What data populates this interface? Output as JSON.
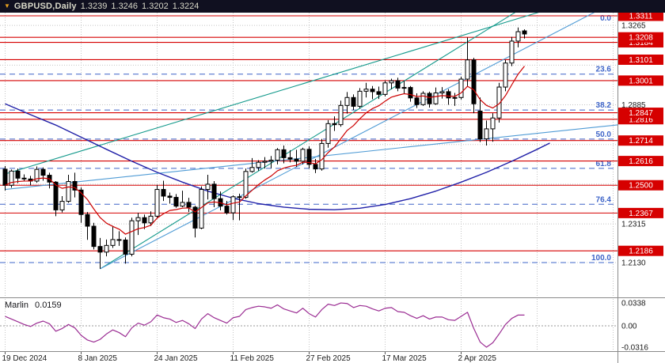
{
  "title_bar": {
    "symbol_period": "GBPUSD,Daily",
    "open": "1.3239",
    "high": "1.3246",
    "low": "1.3202",
    "close": "1.3224"
  },
  "icons": {
    "dropdown_marker": "▼"
  },
  "colors": {
    "level_red": "#d60000",
    "badge_red": "#d60000",
    "badge_text": "#ffffff",
    "fib_blue": "#3e64c8",
    "teal": "#159a8c",
    "trend_blue": "#4f9bd5",
    "ma_red": "#cc0000",
    "ma_navy": "#2020a8",
    "marlin": "#9b2d93",
    "grid": "#c4c4c4",
    "axis_text": "#1a1a1a",
    "candle_up_fill": "#ffffff",
    "candle_down_fill": "#000000",
    "candle_stroke": "#000000",
    "separator": "#8a8a8a"
  },
  "chart_data": {
    "type": "candlestick",
    "title": "GBPUSD Daily with Marlin oscillator",
    "symbol": "GBPUSD",
    "timeframe": "Daily",
    "ylim": [
      1.195,
      1.333
    ],
    "x_axis": {
      "tick_indices": [
        0,
        12,
        24,
        36,
        48,
        60,
        72
      ],
      "tick_labels": [
        "19 Dec 2024",
        "8 Jan 2025",
        "24 Jan 2025",
        "11 Feb 2025",
        "27 Feb 2025",
        "17 Mar 2025",
        "2 Apr 2025"
      ]
    },
    "y_axis_ticks": [
      "1.3265",
      "1.2885",
      "1.2315",
      "1.2130"
    ],
    "grid_levels": [
      1.3265,
      1.3075,
      1.2885,
      1.2695,
      1.2505,
      1.2315,
      1.213
    ],
    "price_levels": [
      1.3311,
      1.3208,
      1.3184,
      1.3101,
      1.3001,
      1.2847,
      1.2816,
      1.2714,
      1.2616,
      1.25,
      1.2367,
      1.2186
    ],
    "fibonacci": {
      "levels": [
        {
          "pct": "0.0",
          "price": 1.3311
        },
        {
          "pct": "23.6",
          "price": 1.3032
        },
        {
          "pct": "38.2",
          "price": 1.286
        },
        {
          "pct": "50.0",
          "price": 1.2721
        },
        {
          "pct": "61.8",
          "price": 1.2581
        },
        {
          "pct": "76.4",
          "price": 1.2409
        },
        {
          "pct": "100.0",
          "price": 1.213
        }
      ]
    },
    "trendlines": [
      {
        "color": "teal",
        "from": [
          0,
          1.2554
        ],
        "to": [
          97,
          1.3445
        ]
      },
      {
        "color": "teal",
        "from": [
          15,
          1.21
        ],
        "to": [
          86,
          1.343
        ]
      },
      {
        "color": "blue",
        "from": [
          15,
          1.21
        ],
        "to": [
          97,
          1.339
        ]
      },
      {
        "color": "blue",
        "from": [
          0,
          1.248
        ],
        "to": [
          97,
          1.279
        ]
      }
    ],
    "moving_averages": {
      "fast_period": 9,
      "slow_points": [
        [
          0,
          1.289
        ],
        [
          4,
          1.2838
        ],
        [
          8,
          1.2788
        ],
        [
          12,
          1.273
        ],
        [
          16,
          1.2672
        ],
        [
          20,
          1.2615
        ],
        [
          24,
          1.2562
        ],
        [
          28,
          1.2515
        ],
        [
          32,
          1.2472
        ],
        [
          36,
          1.2438
        ],
        [
          40,
          1.2412
        ],
        [
          44,
          1.2395
        ],
        [
          48,
          1.2385
        ],
        [
          52,
          1.2383
        ],
        [
          56,
          1.239
        ],
        [
          60,
          1.2408
        ],
        [
          64,
          1.2436
        ],
        [
          68,
          1.2472
        ],
        [
          72,
          1.2515
        ],
        [
          76,
          1.2562
        ],
        [
          80,
          1.2615
        ],
        [
          84,
          1.2672
        ],
        [
          86,
          1.2702
        ]
      ]
    },
    "candles": [
      [
        1.2577,
        1.2592,
        1.2475,
        1.25
      ],
      [
        1.25,
        1.2575,
        1.2488,
        1.2568
      ],
      [
        1.2568,
        1.258,
        1.251,
        1.2534
      ],
      [
        1.2534,
        1.2552,
        1.2518,
        1.253
      ],
      [
        1.253,
        1.2545,
        1.25,
        1.252
      ],
      [
        1.252,
        1.259,
        1.2512,
        1.2576
      ],
      [
        1.2576,
        1.2585,
        1.2522,
        1.2548
      ],
      [
        1.2548,
        1.256,
        1.2485,
        1.2515
      ],
      [
        1.2515,
        1.252,
        1.2352,
        1.2382
      ],
      [
        1.2382,
        1.2448,
        1.237,
        1.2423
      ],
      [
        1.2423,
        1.255,
        1.2416,
        1.2518
      ],
      [
        1.2518,
        1.256,
        1.2442,
        1.2477
      ],
      [
        1.2477,
        1.249,
        1.232,
        1.236
      ],
      [
        1.236,
        1.2372,
        1.2239,
        1.2304
      ],
      [
        1.2304,
        1.232,
        1.2193,
        1.2207
      ],
      [
        1.2207,
        1.2248,
        1.21,
        1.218
      ],
      [
        1.218,
        1.224,
        1.216,
        1.2212
      ],
      [
        1.2212,
        1.2306,
        1.22,
        1.224
      ],
      [
        1.224,
        1.228,
        1.221,
        1.2238
      ],
      [
        1.2238,
        1.225,
        1.2125,
        1.217
      ],
      [
        1.217,
        1.2345,
        1.216,
        1.233
      ],
      [
        1.233,
        1.2368,
        1.2262,
        1.2345
      ],
      [
        1.2345,
        1.236,
        1.229,
        1.232
      ],
      [
        1.232,
        1.2375,
        1.2305,
        1.2352
      ],
      [
        1.2352,
        1.2502,
        1.234,
        1.248
      ],
      [
        1.248,
        1.2522,
        1.2425,
        1.2448
      ],
      [
        1.2448,
        1.2465,
        1.2412,
        1.2442
      ],
      [
        1.2442,
        1.2458,
        1.2392,
        1.24
      ],
      [
        1.24,
        1.2474,
        1.2395,
        1.2418
      ],
      [
        1.2418,
        1.244,
        1.2372,
        1.2395
      ],
      [
        1.2395,
        1.2402,
        1.225,
        1.2295
      ],
      [
        1.2295,
        1.2495,
        1.229,
        1.248
      ],
      [
        1.248,
        1.255,
        1.2432,
        1.2505
      ],
      [
        1.2505,
        1.252,
        1.2395,
        1.2436
      ],
      [
        1.2436,
        1.247,
        1.238,
        1.24
      ],
      [
        1.24,
        1.2425,
        1.236,
        1.2368
      ],
      [
        1.2368,
        1.2452,
        1.2333,
        1.2445
      ],
      [
        1.2445,
        1.246,
        1.2332,
        1.2442
      ],
      [
        1.2442,
        1.258,
        1.2435,
        1.2566
      ],
      [
        1.2566,
        1.263,
        1.256,
        1.2585
      ],
      [
        1.2585,
        1.262,
        1.257,
        1.261
      ],
      [
        1.261,
        1.2635,
        1.258,
        1.2615
      ],
      [
        1.2615,
        1.264,
        1.2582,
        1.262
      ],
      [
        1.262,
        1.2678,
        1.26,
        1.267
      ],
      [
        1.267,
        1.269,
        1.2605,
        1.2632
      ],
      [
        1.2632,
        1.2668,
        1.261,
        1.2625
      ],
      [
        1.2625,
        1.267,
        1.2588,
        1.2615
      ],
      [
        1.2615,
        1.268,
        1.26,
        1.2672
      ],
      [
        1.2672,
        1.2686,
        1.258,
        1.26
      ],
      [
        1.26,
        1.2626,
        1.2558,
        1.2578
      ],
      [
        1.2578,
        1.2722,
        1.257,
        1.27
      ],
      [
        1.27,
        1.2812,
        1.268,
        1.2795
      ],
      [
        1.2795,
        1.283,
        1.276,
        1.279
      ],
      [
        1.279,
        1.2905,
        1.278,
        1.2882
      ],
      [
        1.2882,
        1.2946,
        1.2843,
        1.292
      ],
      [
        1.292,
        1.2935,
        1.286,
        1.2878
      ],
      [
        1.2878,
        1.2965,
        1.2868,
        1.295
      ],
      [
        1.295,
        1.299,
        1.292,
        1.296
      ],
      [
        1.296,
        1.2975,
        1.2912,
        1.2948
      ],
      [
        1.2948,
        1.2972,
        1.2913,
        1.2935
      ],
      [
        1.2935,
        1.3001,
        1.2925,
        1.299
      ],
      [
        1.299,
        1.301,
        1.296,
        1.3
      ],
      [
        1.3,
        1.3015,
        1.295,
        1.2965
      ],
      [
        1.2965,
        1.3,
        1.2938,
        1.2968
      ],
      [
        1.2968,
        1.2975,
        1.29,
        1.2918
      ],
      [
        1.2918,
        1.294,
        1.287,
        1.2886
      ],
      [
        1.2886,
        1.295,
        1.288,
        1.294
      ],
      [
        1.294,
        1.2948,
        1.2872,
        1.289
      ],
      [
        1.289,
        1.2968,
        1.2885,
        1.2942
      ],
      [
        1.2942,
        1.297,
        1.2915,
        1.2948
      ],
      [
        1.2948,
        1.296,
        1.2885,
        1.2918
      ],
      [
        1.2918,
        1.2942,
        1.288,
        1.292
      ],
      [
        1.292,
        1.302,
        1.291,
        1.3008
      ],
      [
        1.3008,
        1.3207,
        1.2972,
        1.31
      ],
      [
        1.31,
        1.311,
        1.2845,
        1.289
      ],
      [
        1.2855,
        1.292,
        1.2707,
        1.2722
      ],
      [
        1.2722,
        1.281,
        1.269,
        1.277
      ],
      [
        1.277,
        1.2845,
        1.2708,
        1.2822
      ],
      [
        1.2822,
        1.299,
        1.28,
        1.297
      ],
      [
        1.297,
        1.31,
        1.295,
        1.3085
      ],
      [
        1.3085,
        1.321,
        1.307,
        1.319
      ],
      [
        1.319,
        1.3255,
        1.316,
        1.3235
      ],
      [
        1.3239,
        1.3246,
        1.3202,
        1.3224
      ]
    ],
    "indicator": {
      "name": "Marlin",
      "value": "0.0159",
      "axis_labels": [
        "0.0338",
        "0.00",
        "-0.0316"
      ],
      "values": [
        0.014,
        0.01,
        0.006,
        0.002,
        -0.001,
        0.004,
        0.007,
        0.003,
        -0.008,
        -0.004,
        0.002,
        -0.003,
        -0.014,
        -0.021,
        -0.024,
        -0.02,
        -0.012,
        -0.006,
        -0.01,
        -0.016,
        -0.003,
        0.004,
        0.001,
        0.006,
        0.016,
        0.012,
        0.01,
        0.005,
        0.008,
        0.003,
        -0.004,
        0.01,
        0.018,
        0.012,
        0.008,
        0.004,
        0.012,
        0.014,
        0.024,
        0.027,
        0.029,
        0.028,
        0.026,
        0.031,
        0.025,
        0.022,
        0.019,
        0.026,
        0.018,
        0.013,
        0.024,
        0.032,
        0.03,
        0.0338,
        0.033,
        0.027,
        0.03,
        0.029,
        0.025,
        0.022,
        0.026,
        0.027,
        0.021,
        0.02,
        0.015,
        0.011,
        0.015,
        0.01,
        0.013,
        0.013,
        0.009,
        0.008,
        0.014,
        0.02,
        -0.004,
        -0.024,
        -0.0316,
        -0.025,
        -0.012,
        0.002,
        0.011,
        0.016,
        0.0159
      ]
    }
  }
}
